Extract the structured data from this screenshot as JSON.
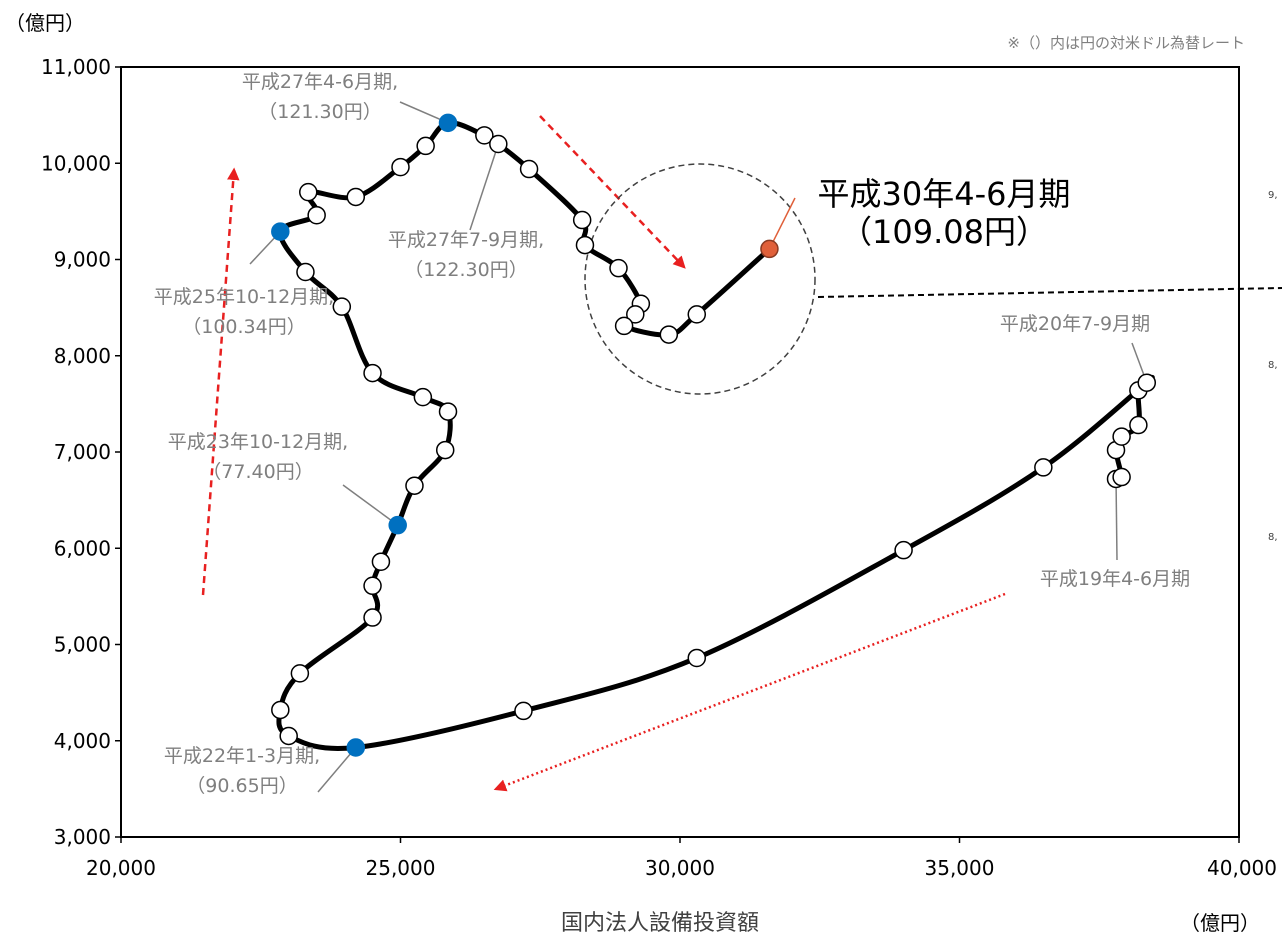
{
  "chart_data": {
    "type": "scatter",
    "connected": true,
    "xlabel": "国内法人設備投資額",
    "x_unit": "（億円）",
    "y_unit": "（億円）",
    "note": "※（）内は円の対米ドル為替レート",
    "xlim": [
      20000,
      40000
    ],
    "ylim": [
      3000,
      11000
    ],
    "x_ticks": [
      "20,000",
      "25,000",
      "30,000",
      "35,000",
      "40,000"
    ],
    "y_ticks": [
      "3,000",
      "4,000",
      "5,000",
      "6,000",
      "7,000",
      "8,000",
      "9,000",
      "10,000",
      "11,000"
    ],
    "grid": false,
    "colors": {
      "line": "#000000",
      "marker_fill": "#ffffff",
      "highlight": "#0070c0",
      "latest": "#e0603a",
      "arrow": "#e82020",
      "leader": "#7f7f7f"
    },
    "series": [
      {
        "points": [
          [
            37800,
            6720
          ],
          [
            37900,
            6740
          ],
          [
            37800,
            7020
          ],
          [
            37900,
            7160
          ],
          [
            38200,
            7280
          ],
          [
            38200,
            7640
          ],
          [
            38350,
            7720
          ],
          [
            36500,
            6840
          ],
          [
            34000,
            5980
          ],
          [
            30300,
            4860
          ],
          [
            27200,
            4310
          ],
          [
            24200,
            3930
          ],
          [
            23000,
            4050
          ],
          [
            22850,
            4320
          ],
          [
            23200,
            4700
          ],
          [
            24500,
            5280
          ],
          [
            24500,
            5610
          ],
          [
            24650,
            5860
          ],
          [
            24950,
            6240
          ],
          [
            25250,
            6650
          ],
          [
            25800,
            7020
          ],
          [
            25850,
            7420
          ],
          [
            25400,
            7570
          ],
          [
            24500,
            7820
          ],
          [
            23950,
            8510
          ],
          [
            23300,
            8870
          ],
          [
            22850,
            9290
          ],
          [
            23500,
            9460
          ],
          [
            23350,
            9700
          ],
          [
            24200,
            9650
          ],
          [
            25000,
            9960
          ],
          [
            25450,
            10180
          ],
          [
            25850,
            10420
          ],
          [
            26500,
            10290
          ],
          [
            26750,
            10200
          ],
          [
            27300,
            9940
          ],
          [
            28250,
            9410
          ],
          [
            28300,
            9150
          ],
          [
            28900,
            8910
          ],
          [
            29300,
            8540
          ],
          [
            29200,
            8430
          ],
          [
            29000,
            8310
          ],
          [
            29800,
            8220
          ],
          [
            30300,
            8430
          ],
          [
            31600,
            9110
          ]
        ],
        "highlighted": [
          11,
          18,
          26,
          32
        ],
        "latest": 44
      }
    ],
    "annotations": [
      {
        "text": "平成27年4-6月期,",
        "text2": "（121.30円）",
        "point": 32
      },
      {
        "text": "平成27年7-9月期,",
        "text2": "（122.30円）",
        "point": 34
      },
      {
        "text": "平成25年10-12月期,",
        "text2": "（100.34円）",
        "point": 26
      },
      {
        "text": "平成23年10-12月期,",
        "text2": "（77.40円）",
        "point": 18
      },
      {
        "text": "平成22年1-3月期,",
        "text2": "（90.65円）",
        "point": 11
      },
      {
        "text": "平成20年7-9月期",
        "text2": "",
        "point": 6
      },
      {
        "text": "平成19年4-6月期",
        "text2": "",
        "point": 0
      },
      {
        "text": "平成30年4-6月期",
        "text2": "（109.08円）",
        "point": 44
      }
    ],
    "side_labels": [
      "9,",
      "8,",
      "8,"
    ]
  }
}
